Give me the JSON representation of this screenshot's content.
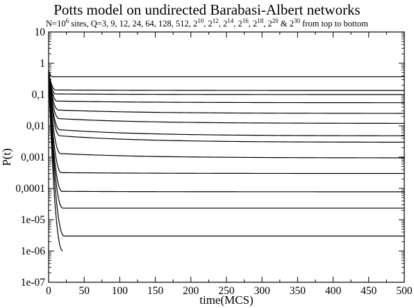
{
  "chart_data": {
    "type": "line",
    "title": "Potts model on undirected Barabasi-Albert networks",
    "subtitle": {
      "prefix": "N=10",
      "n_exp": "6",
      "q_text": " sites, Q=3, 9, 12, 24, 64, 128, 512, ",
      "powers": [
        "10",
        "12",
        "14",
        "16",
        "18",
        "20"
      ],
      "last_power": "30",
      "amp": " & ",
      "suffix": " from top to bottom"
    },
    "xlabel": "time(MCS)",
    "ylabel": "P(t)",
    "xlim": [
      0,
      500
    ],
    "ylim": [
      1e-07,
      10
    ],
    "yscale": "log",
    "grid": false,
    "xticks": [
      "0",
      "50",
      "100",
      "150",
      "200",
      "250",
      "300",
      "350",
      "400",
      "450",
      "500"
    ],
    "yticks": [
      "10",
      "1",
      "0,1",
      "0,01",
      "0,001",
      "0,0001",
      "1e-05",
      "1e-06",
      "1e-07"
    ],
    "series": [
      {
        "label": "Q=3",
        "start": 0.6,
        "plateau": 0.37,
        "end": 0.37,
        "t_break": 6,
        "t_end": 500
      },
      {
        "label": "Q=9",
        "start": 0.55,
        "plateau": 0.14,
        "end": 0.135,
        "t_break": 10,
        "t_end": 500
      },
      {
        "label": "Q=12",
        "start": 0.52,
        "plateau": 0.105,
        "end": 0.1,
        "t_break": 10,
        "t_end": 500
      },
      {
        "label": "Q=24",
        "start": 0.5,
        "plateau": 0.062,
        "end": 0.055,
        "t_break": 12,
        "t_end": 500
      },
      {
        "label": "Q=64",
        "start": 0.48,
        "plateau": 0.032,
        "end": 0.025,
        "t_break": 14,
        "t_end": 500
      },
      {
        "label": "Q=128",
        "start": 0.46,
        "plateau": 0.017,
        "end": 0.012,
        "t_break": 15,
        "t_end": 500
      },
      {
        "label": "Q=512",
        "start": 0.45,
        "plateau": 0.0075,
        "end": 0.0048,
        "t_break": 16,
        "t_end": 500
      },
      {
        "label": "Q=2^10",
        "start": 0.44,
        "plateau": 0.0048,
        "end": 0.003,
        "t_break": 16,
        "t_end": 500
      },
      {
        "label": "Q=2^12",
        "start": 0.43,
        "plateau": 0.0013,
        "end": 0.00095,
        "t_break": 17,
        "t_end": 500
      },
      {
        "label": "Q=2^14",
        "start": 0.42,
        "plateau": 0.00032,
        "end": 0.0003,
        "t_break": 18,
        "t_end": 500
      },
      {
        "label": "Q=2^16",
        "start": 0.41,
        "plateau": 8.05e-05,
        "end": 7.8e-05,
        "t_break": 19,
        "t_end": 500
      },
      {
        "label": "Q=2^18",
        "start": 0.4,
        "plateau": 2.35e-05,
        "end": 2.35e-05,
        "t_break": 20,
        "t_end": 500
      },
      {
        "label": "Q=2^20",
        "start": 0.4,
        "plateau": 3e-06,
        "end": 3e-06,
        "t_break": 22,
        "t_end": 500
      },
      {
        "label": "Q=2^30",
        "start": 0.4,
        "plateau": 1e-06,
        "end": 1e-06,
        "t_break": 20,
        "t_end": 20
      }
    ],
    "colors": {
      "line": "#000000",
      "frame": "#000000",
      "background": "#ffffff"
    }
  }
}
